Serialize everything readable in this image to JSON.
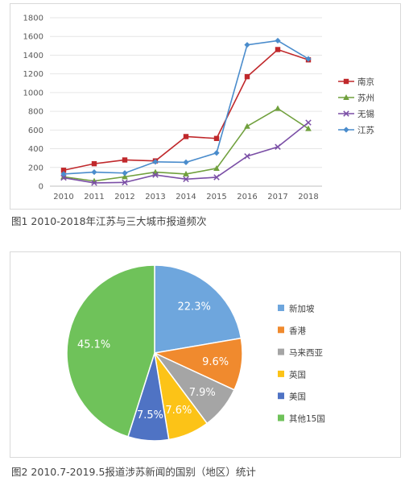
{
  "captions": {
    "fig1": "图1 2010-2018年江苏与三大城市报道频次",
    "fig2": "图2 2010.7-2019.5报道涉苏新闻的国别（地区）统计"
  },
  "chart_data": [
    {
      "type": "line",
      "x": [
        "2010",
        "2011",
        "2012",
        "2013",
        "2014",
        "2015",
        "2016",
        "2017",
        "2018"
      ],
      "ylim": [
        0,
        1800
      ],
      "yticks": [
        0,
        200,
        400,
        600,
        800,
        1000,
        1200,
        1400,
        1600,
        1800
      ],
      "grid": true,
      "legend": "right",
      "series": [
        {
          "name": "南京",
          "color": "#c0282b",
          "marker": "square",
          "values": [
            170,
            240,
            280,
            270,
            530,
            510,
            1170,
            1460,
            1350
          ]
        },
        {
          "name": "苏州",
          "color": "#70a03d",
          "marker": "triangle",
          "values": [
            100,
            55,
            100,
            150,
            130,
            190,
            640,
            830,
            615
          ]
        },
        {
          "name": "无锡",
          "color": "#7b4fa6",
          "marker": "x",
          "values": [
            90,
            35,
            40,
            120,
            75,
            95,
            320,
            420,
            680
          ]
        },
        {
          "name": "江苏",
          "color": "#4a8ccc",
          "marker": "diamond",
          "values": [
            130,
            150,
            140,
            260,
            255,
            355,
            1510,
            1555,
            1360
          ]
        }
      ]
    },
    {
      "type": "pie",
      "legend": "right",
      "slices": [
        {
          "name": "新加坡",
          "value": 22.3,
          "label": "22.3%",
          "color": "#6ea6dd"
        },
        {
          "name": "香港",
          "value": 9.6,
          "label": "9.6%",
          "color": "#f08a2e"
        },
        {
          "name": "马来西亚",
          "value": 7.9,
          "label": "7.9%",
          "color": "#a5a5a5"
        },
        {
          "name": "英国",
          "value": 7.6,
          "label": "7.6%",
          "color": "#fcc317"
        },
        {
          "name": "美国",
          "value": 7.5,
          "label": "7.5%",
          "color": "#4f73c4"
        },
        {
          "name": "其他15国",
          "value": 45.1,
          "label": "45.1%",
          "color": "#6fc25a"
        }
      ]
    }
  ]
}
